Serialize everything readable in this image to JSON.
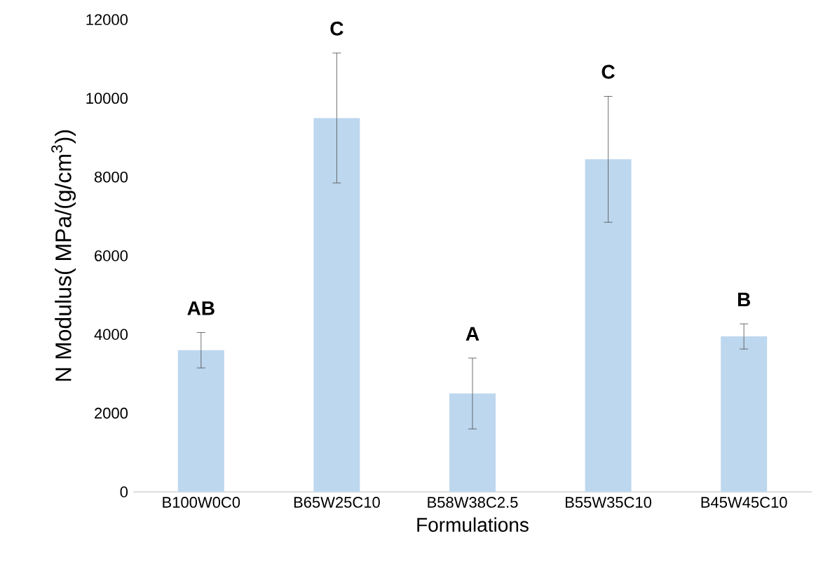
{
  "chart_data": {
    "type": "bar",
    "xlabel": "Formulations",
    "ylabel": "N Modulus( MPa/(g/cm$^{3}$))",
    "categories": [
      "B100W0C0",
      "B65W25C10",
      "B58W38C2.5",
      "B55W35C10",
      "B45W45C10"
    ],
    "values": [
      3600,
      9500,
      2500,
      8450,
      3950
    ],
    "errors": [
      450,
      1650,
      900,
      1600,
      320
    ],
    "color": "#bdd7ee",
    "ylim": [
      0,
      12000
    ],
    "yticks": [
      0,
      2000,
      4000,
      6000,
      8000,
      10000,
      12000
    ],
    "annotations": [
      "**AB**",
      "**C**",
      "**A**",
      "**C**",
      "**B**"
    ]
  }
}
